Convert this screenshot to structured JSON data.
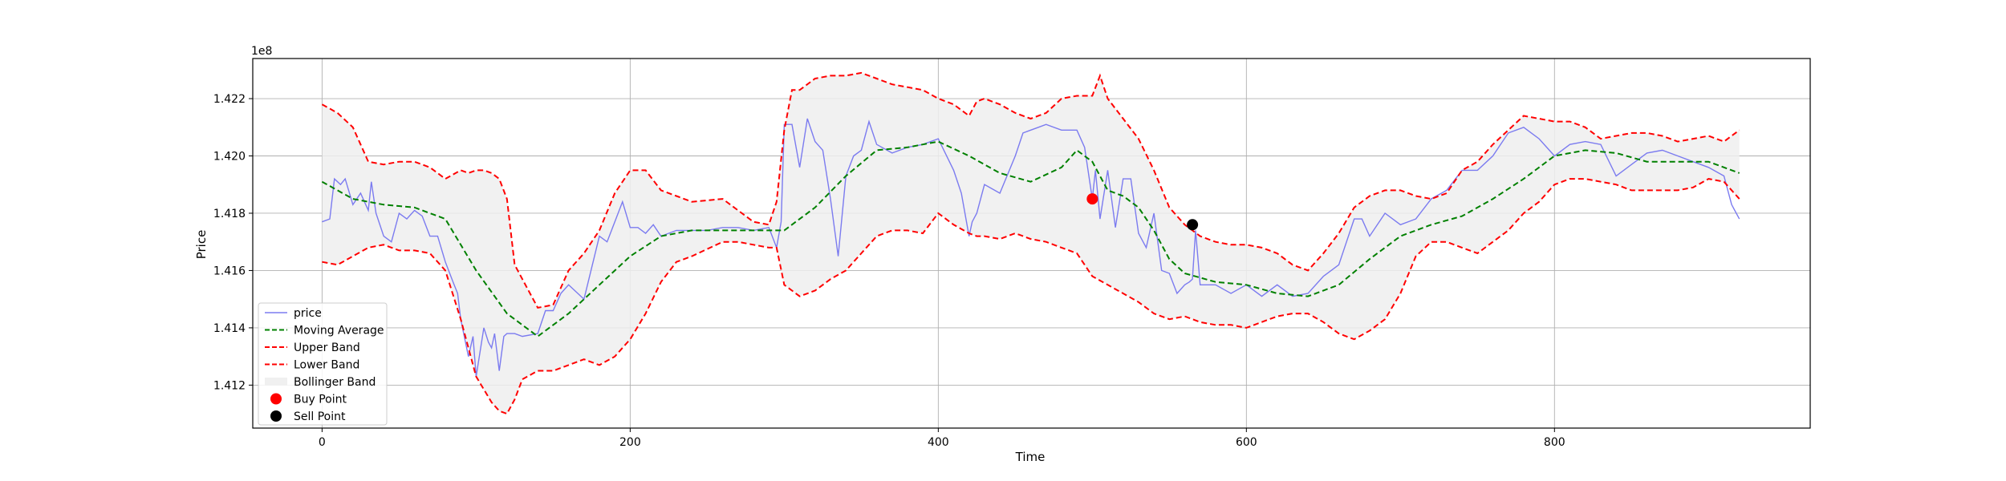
{
  "chart_data": {
    "type": "line",
    "title": "",
    "xlabel": "Time",
    "ylabel": "Price",
    "y_offset_label": "1e8",
    "xlim": [
      -45,
      966
    ],
    "ylim": [
      141.05,
      142.34
    ],
    "xticks": [
      0,
      200,
      400,
      600,
      800
    ],
    "xtick_labels": [
      "0",
      "200",
      "400",
      "600",
      "800"
    ],
    "yticks": [
      141.2,
      141.4,
      141.6,
      141.8,
      142.0,
      142.2
    ],
    "ytick_labels": [
      "1.412",
      "1.414",
      "1.416",
      "1.418",
      "1.420",
      "1.422"
    ],
    "grid": true,
    "legend_position": "lower-left",
    "legend": [
      {
        "label": "price",
        "kind": "line",
        "color": "#7b7bf0",
        "dash": "solid"
      },
      {
        "label": "Moving Average",
        "kind": "line",
        "color": "#008000",
        "dash": "dashed"
      },
      {
        "label": "Upper Band",
        "kind": "line",
        "color": "#ff0000",
        "dash": "dashed"
      },
      {
        "label": "Lower Band",
        "kind": "line",
        "color": "#ff0000",
        "dash": "dashed"
      },
      {
        "label": "Bollinger Band",
        "kind": "fill",
        "color": "#f0f0f0",
        "dash": ""
      },
      {
        "label": "Buy Point",
        "kind": "marker",
        "color": "#ff0000",
        "dash": ""
      },
      {
        "label": "Sell Point",
        "kind": "marker",
        "color": "#000000",
        "dash": ""
      }
    ],
    "series": [
      {
        "name": "price",
        "color": "#7b7bf0",
        "x": [
          0,
          5,
          8,
          12,
          15,
          20,
          25,
          30,
          32,
          35,
          40,
          45,
          50,
          55,
          60,
          65,
          70,
          75,
          80,
          85,
          88,
          90,
          95,
          98,
          100,
          105,
          108,
          110,
          112,
          115,
          118,
          120,
          125,
          130,
          140,
          145,
          150,
          155,
          160,
          170,
          180,
          185,
          190,
          195,
          200,
          205,
          210,
          215,
          220,
          230,
          240,
          250,
          260,
          270,
          280,
          290,
          295,
          298,
          300,
          305,
          310,
          315,
          320,
          325,
          330,
          335,
          340,
          345,
          350,
          355,
          360,
          370,
          380,
          390,
          400,
          410,
          415,
          420,
          422,
          425,
          430,
          440,
          450,
          455,
          460,
          465,
          470,
          480,
          490,
          495,
          500,
          502,
          505,
          510,
          515,
          520,
          525,
          530,
          535,
          540,
          545,
          550,
          555,
          560,
          563,
          565,
          567,
          570,
          580,
          590,
          600,
          610,
          620,
          630,
          640,
          650,
          660,
          665,
          670,
          675,
          680,
          690,
          700,
          710,
          720,
          730,
          740,
          750,
          760,
          770,
          780,
          790,
          800,
          810,
          820,
          830,
          840,
          850,
          860,
          870,
          880,
          890,
          900,
          910,
          915,
          920
        ],
        "y": [
          141.77,
          141.78,
          141.92,
          141.9,
          141.92,
          141.83,
          141.87,
          141.81,
          141.91,
          141.8,
          141.72,
          141.7,
          141.8,
          141.78,
          141.81,
          141.79,
          141.72,
          141.72,
          141.63,
          141.56,
          141.52,
          141.43,
          141.3,
          141.37,
          141.23,
          141.4,
          141.35,
          141.33,
          141.38,
          141.25,
          141.37,
          141.38,
          141.38,
          141.37,
          141.38,
          141.46,
          141.46,
          141.52,
          141.55,
          141.5,
          141.72,
          141.7,
          141.77,
          141.84,
          141.75,
          141.75,
          141.73,
          141.76,
          141.72,
          141.74,
          141.74,
          141.74,
          141.75,
          141.75,
          141.74,
          141.75,
          141.68,
          141.77,
          142.11,
          142.11,
          141.96,
          142.13,
          142.05,
          142.02,
          141.85,
          141.65,
          141.93,
          142.0,
          142.02,
          142.12,
          142.04,
          142.01,
          142.03,
          142.04,
          142.06,
          141.95,
          141.87,
          141.72,
          141.77,
          141.8,
          141.9,
          141.87,
          142.0,
          142.08,
          142.09,
          142.1,
          142.11,
          142.09,
          142.09,
          142.03,
          141.85,
          141.95,
          141.78,
          141.95,
          141.75,
          141.92,
          141.92,
          141.73,
          141.68,
          141.8,
          141.6,
          141.59,
          141.52,
          141.55,
          141.56,
          141.57,
          141.74,
          141.55,
          141.55,
          141.52,
          141.55,
          141.51,
          141.55,
          141.51,
          141.52,
          141.58,
          141.62,
          141.7,
          141.78,
          141.78,
          141.72,
          141.8,
          141.76,
          141.78,
          141.85,
          141.88,
          141.95,
          141.95,
          142.0,
          142.08,
          142.1,
          142.06,
          142.0,
          142.04,
          142.05,
          142.04,
          141.93,
          141.97,
          142.01,
          142.02,
          142.0,
          141.98,
          141.96,
          141.93,
          141.83,
          141.78
        ]
      },
      {
        "name": "Moving Average",
        "color": "#008000",
        "x": [
          0,
          20,
          40,
          60,
          80,
          100,
          120,
          140,
          160,
          180,
          200,
          220,
          240,
          260,
          280,
          300,
          320,
          340,
          360,
          380,
          400,
          420,
          440,
          460,
          480,
          490,
          500,
          510,
          520,
          530,
          540,
          550,
          560,
          580,
          600,
          620,
          640,
          660,
          680,
          700,
          720,
          740,
          760,
          780,
          800,
          820,
          840,
          860,
          880,
          900,
          920
        ],
        "y": [
          141.91,
          141.85,
          141.83,
          141.82,
          141.78,
          141.6,
          141.45,
          141.37,
          141.45,
          141.55,
          141.65,
          141.72,
          141.74,
          141.74,
          141.74,
          141.74,
          141.82,
          141.93,
          142.02,
          142.03,
          142.05,
          142.0,
          141.94,
          141.91,
          141.96,
          142.02,
          141.98,
          141.88,
          141.86,
          141.82,
          141.74,
          141.64,
          141.59,
          141.56,
          141.55,
          141.52,
          141.51,
          141.55,
          141.64,
          141.72,
          141.76,
          141.79,
          141.85,
          141.92,
          142.0,
          142.02,
          142.01,
          141.98,
          141.98,
          141.98,
          141.94
        ]
      },
      {
        "name": "Upper Band",
        "color": "#ff0000",
        "x": [
          0,
          10,
          20,
          25,
          30,
          40,
          50,
          60,
          70,
          80,
          90,
          95,
          100,
          105,
          110,
          115,
          120,
          125,
          130,
          140,
          150,
          160,
          170,
          180,
          190,
          200,
          210,
          220,
          230,
          240,
          260,
          280,
          290,
          295,
          300,
          305,
          310,
          320,
          330,
          340,
          350,
          360,
          370,
          380,
          390,
          400,
          410,
          420,
          425,
          430,
          440,
          450,
          460,
          470,
          480,
          490,
          500,
          505,
          510,
          520,
          530,
          540,
          550,
          560,
          570,
          580,
          590,
          600,
          610,
          620,
          630,
          640,
          650,
          660,
          670,
          680,
          690,
          700,
          710,
          720,
          730,
          740,
          750,
          760,
          770,
          780,
          790,
          800,
          810,
          820,
          830,
          840,
          850,
          860,
          870,
          880,
          890,
          900,
          910,
          920
        ],
        "y": [
          142.18,
          142.15,
          142.1,
          142.04,
          141.98,
          141.97,
          141.98,
          141.98,
          141.96,
          141.92,
          141.95,
          141.94,
          141.95,
          141.95,
          141.94,
          141.92,
          141.85,
          141.62,
          141.57,
          141.47,
          141.48,
          141.6,
          141.66,
          141.74,
          141.87,
          141.95,
          141.95,
          141.88,
          141.86,
          141.84,
          141.85,
          141.77,
          141.76,
          141.84,
          142.09,
          142.23,
          142.23,
          142.27,
          142.28,
          142.28,
          142.29,
          142.27,
          142.25,
          142.24,
          142.23,
          142.2,
          142.18,
          142.14,
          142.19,
          142.2,
          142.18,
          142.15,
          142.13,
          142.15,
          142.2,
          142.21,
          142.21,
          142.28,
          142.2,
          142.13,
          142.06,
          141.95,
          141.82,
          141.76,
          141.72,
          141.7,
          141.69,
          141.69,
          141.68,
          141.66,
          141.62,
          141.6,
          141.66,
          141.73,
          141.82,
          141.86,
          141.88,
          141.88,
          141.86,
          141.85,
          141.87,
          141.95,
          141.98,
          142.04,
          142.09,
          142.14,
          142.13,
          142.12,
          142.12,
          142.1,
          142.06,
          142.07,
          142.08,
          142.08,
          142.07,
          142.05,
          142.06,
          142.07,
          142.05,
          142.09
        ]
      },
      {
        "name": "Lower Band",
        "color": "#ff0000",
        "x": [
          0,
          10,
          20,
          30,
          40,
          50,
          60,
          70,
          80,
          90,
          100,
          110,
          115,
          120,
          125,
          130,
          140,
          150,
          160,
          170,
          180,
          190,
          200,
          210,
          220,
          230,
          240,
          260,
          270,
          280,
          290,
          295,
          300,
          310,
          320,
          330,
          340,
          350,
          360,
          370,
          380,
          390,
          400,
          410,
          420,
          425,
          430,
          440,
          450,
          460,
          470,
          480,
          490,
          500,
          510,
          520,
          530,
          540,
          550,
          560,
          570,
          580,
          590,
          600,
          620,
          630,
          640,
          650,
          660,
          670,
          680,
          690,
          700,
          710,
          720,
          730,
          740,
          750,
          760,
          770,
          780,
          790,
          800,
          810,
          820,
          830,
          840,
          850,
          860,
          870,
          880,
          890,
          900,
          910,
          920
        ],
        "y": [
          141.63,
          141.62,
          141.65,
          141.68,
          141.69,
          141.67,
          141.67,
          141.66,
          141.6,
          141.43,
          141.23,
          141.14,
          141.11,
          141.1,
          141.15,
          141.22,
          141.25,
          141.25,
          141.27,
          141.29,
          141.27,
          141.3,
          141.36,
          141.45,
          141.56,
          141.63,
          141.65,
          141.7,
          141.7,
          141.69,
          141.68,
          141.68,
          141.55,
          141.51,
          141.53,
          141.57,
          141.6,
          141.66,
          141.72,
          141.74,
          141.74,
          141.73,
          141.8,
          141.76,
          141.73,
          141.72,
          141.72,
          141.71,
          141.73,
          141.71,
          141.7,
          141.68,
          141.66,
          141.58,
          141.55,
          141.52,
          141.49,
          141.45,
          141.43,
          141.44,
          141.42,
          141.41,
          141.41,
          141.4,
          141.44,
          141.45,
          141.45,
          141.42,
          141.38,
          141.36,
          141.39,
          141.43,
          141.52,
          141.65,
          141.7,
          141.7,
          141.68,
          141.66,
          141.7,
          141.74,
          141.8,
          141.84,
          141.9,
          141.92,
          141.92,
          141.91,
          141.9,
          141.88,
          141.88,
          141.88,
          141.88,
          141.89,
          141.92,
          141.91,
          141.85
        ]
      }
    ],
    "buy_points": [
      {
        "x": 500,
        "y": 141.85
      }
    ],
    "sell_points": [
      {
        "x": 565,
        "y": 141.76
      }
    ]
  }
}
